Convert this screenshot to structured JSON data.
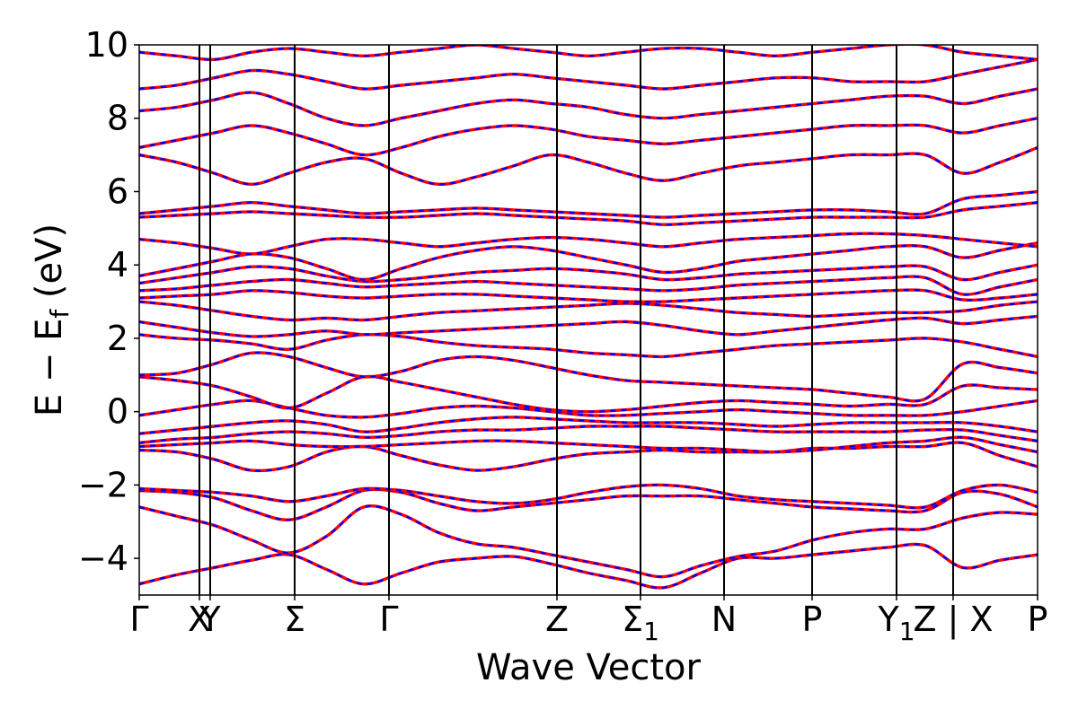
{
  "chart_data": {
    "type": "line",
    "title": "",
    "xlabel": "Wave Vector",
    "ylabel": "E − E",
    "ylabel_sub": "f",
    "ylabel_unit": " (eV)",
    "ylim": [
      -5,
      10
    ],
    "yticks": [
      {
        "value": -4,
        "label": "−4"
      },
      {
        "value": -2,
        "label": "−2"
      },
      {
        "value": 0,
        "label": "0"
      },
      {
        "value": 2,
        "label": "2"
      },
      {
        "value": 4,
        "label": "4"
      },
      {
        "value": 6,
        "label": "6"
      },
      {
        "value": 8,
        "label": "8"
      },
      {
        "value": 10,
        "label": "10"
      }
    ],
    "xlim": [
      0,
      1
    ],
    "kpoints": [
      {
        "x": 0.0,
        "label": "Γ"
      },
      {
        "x": 0.067,
        "label": "X"
      },
      {
        "x": 0.079,
        "label": "Y"
      },
      {
        "x": 0.173,
        "label": "Σ"
      },
      {
        "x": 0.278,
        "label": "Γ"
      },
      {
        "x": 0.465,
        "label": "Z"
      },
      {
        "x": 0.558,
        "label": "Σ",
        "sub": "1"
      },
      {
        "x": 0.651,
        "label": "N"
      },
      {
        "x": 0.749,
        "label": "P"
      },
      {
        "x": 0.843,
        "label": "Y",
        "sub": "1"
      },
      {
        "x": 0.906,
        "label": "Z | X"
      },
      {
        "x": 1.0,
        "label": "P"
      }
    ],
    "grid": false,
    "legend": "none",
    "colors": {
      "solid": "#ff0000",
      "dashed": "#0000ff"
    },
    "series_style": "blue dashed bands overlaid on red solid bands",
    "bands": [
      {
        "name": "",
        "values": [
          -4.7,
          -4.45,
          -4.25,
          -4.05,
          -3.9,
          -4.3,
          -4.7,
          -4.4,
          -4.1,
          -4.0,
          -3.95,
          -4.15,
          -4.4,
          -4.6,
          -4.8,
          -4.4,
          -4.0,
          -4.0,
          -3.9,
          -3.8,
          -3.7,
          -3.65,
          -4.25,
          -4.05,
          -3.9
        ]
      },
      {
        "name": "",
        "values": [
          -2.6,
          -2.85,
          -3.1,
          -3.5,
          -3.85,
          -3.4,
          -2.6,
          -2.8,
          -3.3,
          -3.6,
          -3.7,
          -3.9,
          -4.1,
          -4.3,
          -4.5,
          -4.2,
          -3.95,
          -3.8,
          -3.5,
          -3.3,
          -3.2,
          -3.2,
          -2.9,
          -2.75,
          -2.8
        ]
      },
      {
        "name": "",
        "values": [
          -2.15,
          -2.2,
          -2.35,
          -2.7,
          -2.95,
          -2.6,
          -2.15,
          -2.2,
          -2.5,
          -2.7,
          -2.6,
          -2.5,
          -2.4,
          -2.3,
          -2.3,
          -2.3,
          -2.4,
          -2.5,
          -2.6,
          -2.65,
          -2.7,
          -2.7,
          -2.2,
          -2.25,
          -2.6
        ]
      },
      {
        "name": "",
        "values": [
          -2.1,
          -2.15,
          -2.2,
          -2.3,
          -2.45,
          -2.3,
          -2.1,
          -2.15,
          -2.3,
          -2.45,
          -2.5,
          -2.4,
          -2.2,
          -2.05,
          -2.0,
          -2.1,
          -2.3,
          -2.4,
          -2.45,
          -2.5,
          -2.55,
          -2.6,
          -2.15,
          -2.0,
          -2.2
        ]
      },
      {
        "name": "",
        "values": [
          -1.05,
          -1.1,
          -1.3,
          -1.6,
          -1.5,
          -1.1,
          -0.95,
          -1.2,
          -1.45,
          -1.6,
          -1.5,
          -1.3,
          -1.15,
          -1.1,
          -1.05,
          -1.1,
          -1.1,
          -1.1,
          -1.0,
          -1.0,
          -0.95,
          -0.95,
          -0.85,
          -1.2,
          -1.5
        ]
      },
      {
        "name": "",
        "values": [
          -0.95,
          -0.9,
          -0.85,
          -0.8,
          -0.9,
          -0.95,
          -0.95,
          -0.9,
          -0.85,
          -0.8,
          -0.8,
          -0.85,
          -0.9,
          -0.95,
          -1.0,
          -1.0,
          -1.05,
          -1.1,
          -1.05,
          -0.95,
          -0.85,
          -0.8,
          -0.7,
          -0.9,
          -1.1
        ]
      },
      {
        "name": "",
        "values": [
          -0.85,
          -0.75,
          -0.7,
          -0.6,
          -0.55,
          -0.6,
          -0.7,
          -0.65,
          -0.55,
          -0.5,
          -0.5,
          -0.45,
          -0.4,
          -0.4,
          -0.4,
          -0.45,
          -0.5,
          -0.55,
          -0.55,
          -0.55,
          -0.55,
          -0.5,
          -0.5,
          -0.65,
          -0.8
        ]
      },
      {
        "name": "",
        "values": [
          -0.6,
          -0.5,
          -0.4,
          -0.3,
          -0.25,
          -0.35,
          -0.55,
          -0.45,
          -0.3,
          -0.2,
          -0.15,
          -0.2,
          -0.25,
          -0.3,
          -0.3,
          -0.3,
          -0.35,
          -0.4,
          -0.35,
          -0.3,
          -0.3,
          -0.3,
          -0.3,
          -0.4,
          -0.55
        ]
      },
      {
        "name": "",
        "values": [
          -0.1,
          0.05,
          0.2,
          0.3,
          0.1,
          -0.1,
          -0.15,
          -0.05,
          0.1,
          0.15,
          0.1,
          0.0,
          -0.1,
          -0.1,
          -0.05,
          0.0,
          0.05,
          0.0,
          -0.05,
          -0.1,
          -0.1,
          -0.1,
          0.0,
          0.15,
          0.3
        ]
      },
      {
        "name": "",
        "values": [
          0.95,
          0.85,
          0.7,
          0.4,
          0.1,
          0.5,
          0.95,
          0.8,
          0.6,
          0.4,
          0.2,
          0.05,
          0.0,
          0.05,
          0.15,
          0.25,
          0.3,
          0.25,
          0.2,
          0.15,
          0.2,
          0.2,
          0.7,
          0.65,
          0.6
        ]
      },
      {
        "name": "",
        "values": [
          1.0,
          1.05,
          1.3,
          1.6,
          1.5,
          1.2,
          0.95,
          1.1,
          1.4,
          1.5,
          1.4,
          1.2,
          1.0,
          0.85,
          0.8,
          0.75,
          0.7,
          0.65,
          0.6,
          0.5,
          0.4,
          0.35,
          1.3,
          1.2,
          1.05
        ]
      },
      {
        "name": "",
        "values": [
          2.1,
          2.0,
          1.95,
          1.85,
          1.7,
          1.95,
          2.1,
          2.05,
          1.9,
          1.8,
          1.75,
          1.7,
          1.6,
          1.55,
          1.5,
          1.6,
          1.7,
          1.8,
          1.85,
          1.9,
          1.95,
          2.0,
          1.9,
          1.7,
          1.5
        ]
      },
      {
        "name": "",
        "values": [
          2.45,
          2.3,
          2.15,
          2.05,
          2.1,
          2.2,
          2.1,
          2.15,
          2.2,
          2.25,
          2.3,
          2.35,
          2.4,
          2.45,
          2.35,
          2.2,
          2.1,
          2.2,
          2.3,
          2.4,
          2.5,
          2.55,
          2.4,
          2.5,
          2.6
        ]
      },
      {
        "name": "",
        "values": [
          3.0,
          2.9,
          2.75,
          2.6,
          2.5,
          2.55,
          2.5,
          2.6,
          2.7,
          2.75,
          2.8,
          2.85,
          2.9,
          2.95,
          2.9,
          2.8,
          2.7,
          2.65,
          2.6,
          2.65,
          2.7,
          2.7,
          2.75,
          2.9,
          3.0
        ]
      },
      {
        "name": "",
        "values": [
          3.1,
          3.15,
          3.2,
          3.3,
          3.25,
          3.15,
          3.1,
          3.15,
          3.2,
          3.2,
          3.15,
          3.1,
          3.05,
          3.0,
          3.0,
          3.05,
          3.1,
          3.15,
          3.2,
          3.25,
          3.3,
          3.3,
          3.05,
          3.1,
          3.2
        ]
      },
      {
        "name": "",
        "values": [
          3.3,
          3.35,
          3.45,
          3.55,
          3.6,
          3.5,
          3.4,
          3.45,
          3.5,
          3.55,
          3.5,
          3.45,
          3.4,
          3.35,
          3.3,
          3.35,
          3.45,
          3.5,
          3.55,
          3.6,
          3.65,
          3.65,
          3.2,
          3.4,
          3.6
        ]
      },
      {
        "name": "",
        "values": [
          3.5,
          3.65,
          3.8,
          3.95,
          3.9,
          3.7,
          3.55,
          3.6,
          3.7,
          3.8,
          3.85,
          3.9,
          3.85,
          3.75,
          3.6,
          3.65,
          3.75,
          3.8,
          3.85,
          3.9,
          3.95,
          3.95,
          3.6,
          3.8,
          4.0
        ]
      },
      {
        "name": "",
        "values": [
          3.7,
          3.9,
          4.1,
          4.3,
          4.2,
          3.9,
          3.6,
          3.9,
          4.2,
          4.4,
          4.5,
          4.4,
          4.2,
          4.0,
          3.8,
          3.9,
          4.1,
          4.2,
          4.3,
          4.4,
          4.5,
          4.5,
          4.2,
          4.4,
          4.6
        ]
      },
      {
        "name": "",
        "values": [
          4.7,
          4.6,
          4.45,
          4.3,
          4.5,
          4.7,
          4.7,
          4.6,
          4.5,
          4.6,
          4.7,
          4.75,
          4.7,
          4.6,
          4.5,
          4.6,
          4.7,
          4.75,
          4.8,
          4.85,
          4.85,
          4.8,
          4.7,
          4.6,
          4.5
        ]
      },
      {
        "name": "",
        "values": [
          5.3,
          5.35,
          5.4,
          5.45,
          5.4,
          5.35,
          5.3,
          5.3,
          5.35,
          5.4,
          5.35,
          5.3,
          5.25,
          5.2,
          5.1,
          5.15,
          5.2,
          5.25,
          5.3,
          5.3,
          5.3,
          5.3,
          5.5,
          5.6,
          5.7
        ]
      },
      {
        "name": "",
        "values": [
          5.4,
          5.5,
          5.6,
          5.7,
          5.6,
          5.5,
          5.4,
          5.45,
          5.5,
          5.55,
          5.5,
          5.45,
          5.4,
          5.35,
          5.3,
          5.35,
          5.4,
          5.45,
          5.5,
          5.5,
          5.45,
          5.4,
          5.8,
          5.9,
          6.0
        ]
      },
      {
        "name": "",
        "values": [
          7.0,
          6.8,
          6.5,
          6.2,
          6.5,
          6.8,
          6.9,
          6.5,
          6.2,
          6.4,
          6.7,
          7.0,
          6.8,
          6.5,
          6.3,
          6.5,
          6.7,
          6.8,
          6.9,
          7.0,
          7.0,
          7.0,
          6.5,
          6.8,
          7.2
        ]
      },
      {
        "name": "",
        "values": [
          7.2,
          7.4,
          7.6,
          7.8,
          7.6,
          7.3,
          7.0,
          7.2,
          7.5,
          7.7,
          7.8,
          7.7,
          7.5,
          7.4,
          7.3,
          7.4,
          7.5,
          7.6,
          7.7,
          7.8,
          7.8,
          7.8,
          7.6,
          7.8,
          8.0
        ]
      },
      {
        "name": "",
        "values": [
          8.2,
          8.3,
          8.5,
          8.7,
          8.4,
          8.0,
          7.8,
          8.0,
          8.2,
          8.4,
          8.5,
          8.4,
          8.3,
          8.1,
          8.0,
          8.1,
          8.2,
          8.3,
          8.4,
          8.5,
          8.6,
          8.6,
          8.4,
          8.6,
          8.8
        ]
      },
      {
        "name": "",
        "values": [
          8.8,
          8.9,
          9.1,
          9.3,
          9.2,
          9.0,
          8.8,
          8.9,
          9.0,
          9.1,
          9.2,
          9.1,
          9.0,
          8.9,
          8.8,
          8.9,
          9.0,
          9.1,
          9.1,
          9.0,
          9.0,
          9.0,
          9.2,
          9.4,
          9.6
        ]
      },
      {
        "name": "",
        "values": [
          9.8,
          9.7,
          9.6,
          9.8,
          9.9,
          9.8,
          9.7,
          9.8,
          9.9,
          10.0,
          9.9,
          9.8,
          9.7,
          9.8,
          9.9,
          9.9,
          9.8,
          9.7,
          9.8,
          9.9,
          10.0,
          10.0,
          9.8,
          9.7,
          9.6
        ]
      }
    ]
  }
}
